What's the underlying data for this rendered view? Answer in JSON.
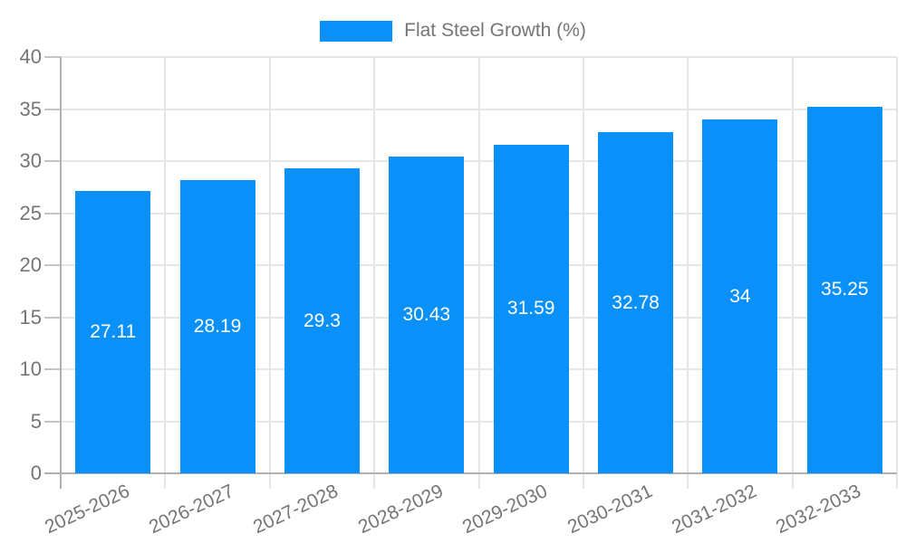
{
  "chart_data": {
    "type": "bar",
    "title": "",
    "xlabel": "",
    "ylabel": "",
    "categories": [
      "2025-2026",
      "2026-2027",
      "2027-2028",
      "2028-2029",
      "2029-2030",
      "2030-2031",
      "2031-2032",
      "2032-2033"
    ],
    "series": [
      {
        "name": "Flat Steel Growth (%)",
        "values": [
          27.11,
          28.19,
          29.3,
          30.43,
          31.59,
          32.78,
          34,
          35.25
        ]
      }
    ],
    "value_labels": [
      "27.11",
      "28.19",
      "29.3",
      "30.43",
      "31.59",
      "32.78",
      "34",
      "35.25"
    ],
    "ylim": [
      0,
      40
    ],
    "y_ticks": [
      0,
      5,
      10,
      15,
      20,
      25,
      30,
      35,
      40
    ],
    "grid": true,
    "legend_position": "top-center",
    "colors": {
      "bar": "#0a90f9",
      "grid": "#e6e6e6",
      "axis": "#b0b0b0",
      "tick": "#c4c4c4",
      "axis_text": "#757575",
      "bar_label": "#ffffff",
      "background": "#ffffff"
    }
  }
}
